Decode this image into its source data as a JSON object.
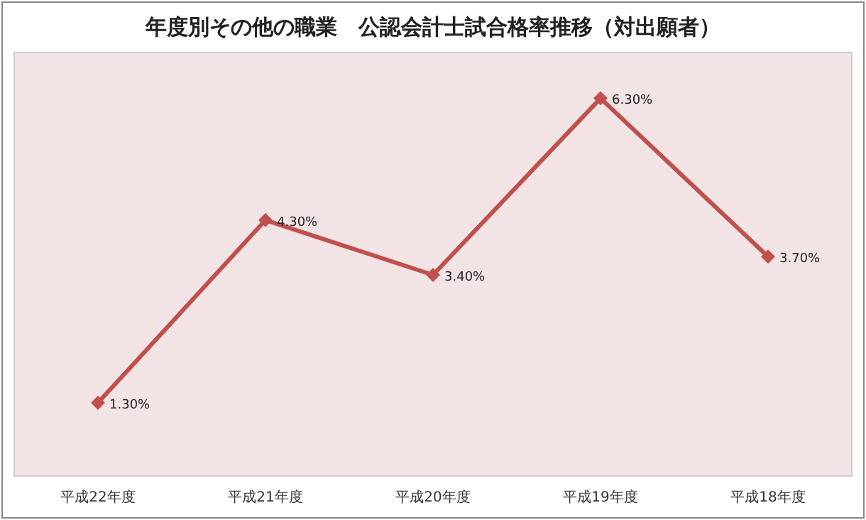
{
  "chart_data": {
    "type": "line",
    "title": "年度別その他の職業　公認会計士試合格率推移（対出願者）",
    "categories": [
      "平成22年度",
      "平成21年度",
      "平成20年度",
      "平成19年度",
      "平成18年度"
    ],
    "values": [
      1.3,
      4.3,
      3.4,
      6.3,
      3.7
    ],
    "value_labels": [
      "1.30%",
      "4.30%",
      "3.40%",
      "6.30%",
      "3.70%"
    ],
    "color": "#c0504d",
    "marker": "diamond",
    "line_style": "solid"
  }
}
